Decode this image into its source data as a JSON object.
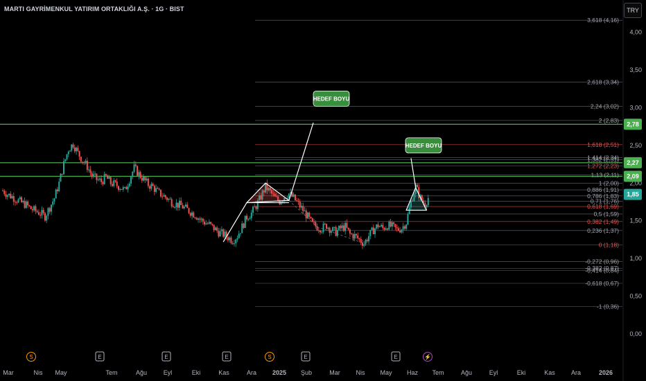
{
  "header": {
    "title": "MARTI GAYRİMENKUL YATIRIM ORTAKLIĞI A.Ş. · 1G · BIST",
    "currency_button": "TRY"
  },
  "colors": {
    "background": "#000000",
    "candle_up": "#26a69a",
    "candle_down": "#ef5350",
    "fib_green": "#4caf50",
    "fib_red": "#c62828",
    "fib_gray": "#787b86",
    "annotation_line": "#ffffff",
    "callout_bg": "#388e3c"
  },
  "chart_data": {
    "type": "candlestick",
    "title": "MARTI GAYRİMENKUL YATIRIM ORTAKLIĞI A.Ş. · 1G · BIST",
    "y_ticks": [
      "0,00",
      "0,50",
      "1,00",
      "1,50",
      "2,00",
      "2,50",
      "3,00",
      "3,50",
      "4,00"
    ],
    "ylim": [
      -0.35,
      4.3
    ],
    "x_ticks": [
      "Mar",
      "Nis",
      "May",
      "Tem",
      "Ağu",
      "Eyl",
      "Eki",
      "Kas",
      "Ara",
      "2025",
      "Şub",
      "Mar",
      "Nis",
      "May",
      "Haz",
      "Tem",
      "Ağu",
      "Eyl",
      "Eki",
      "Kas",
      "Ara",
      "2026"
    ],
    "price_labels": [
      {
        "value": 2.78,
        "text": "2,78",
        "color": "#4caf50"
      },
      {
        "value": 2.27,
        "text": "2,27",
        "color": "#4caf50"
      },
      {
        "value": 2.09,
        "text": "2,09",
        "color": "#4caf50"
      },
      {
        "value": 1.85,
        "text": "1,85",
        "color": "#26a69a"
      }
    ],
    "horizontal_lines": [
      2.78,
      2.27,
      2.09
    ],
    "fib_levels": [
      {
        "label": "3,618 (4,16)",
        "value": 4.16,
        "color": "#787b86"
      },
      {
        "label": "2,618 (3,34)",
        "value": 3.34,
        "color": "#787b86"
      },
      {
        "label": "2,24 (3,02)",
        "value": 3.02,
        "color": "#787b86"
      },
      {
        "label": "2 (2,83)",
        "value": 2.83,
        "color": "#787b86"
      },
      {
        "label": "1,618 (2,51)",
        "value": 2.51,
        "color": "#ef5350"
      },
      {
        "label": "1,414 (2,34)",
        "value": 2.34,
        "color": "#787b86"
      },
      {
        "label": "1,382 (2,31)",
        "value": 2.31,
        "color": "#787b86"
      },
      {
        "label": "1,272 (2,23)",
        "value": 2.23,
        "color": "#ef5350"
      },
      {
        "label": "1,13 (2,11)",
        "value": 2.11,
        "color": "#787b86"
      },
      {
        "label": "1 (2,00)",
        "value": 2.0,
        "color": "#787b86"
      },
      {
        "label": "0,886 (1,91)",
        "value": 1.91,
        "color": "#787b86"
      },
      {
        "label": "0,786 (1,83)",
        "value": 1.83,
        "color": "#787b86"
      },
      {
        "label": "0,71 (1,76)",
        "value": 1.76,
        "color": "#787b86"
      },
      {
        "label": "0,618 (1,69)",
        "value": 1.69,
        "color": "#ef5350"
      },
      {
        "label": "0,5 (1,59)",
        "value": 1.59,
        "color": "#787b86"
      },
      {
        "label": "0,382 (1,49)",
        "value": 1.49,
        "color": "#ef5350"
      },
      {
        "label": "0,236 (1,37)",
        "value": 1.37,
        "color": "#787b86"
      },
      {
        "label": "0 (1,18)",
        "value": 1.18,
        "color": "#ef5350"
      },
      {
        "label": "-0,272 (0,96)",
        "value": 0.96,
        "color": "#787b86"
      },
      {
        "label": "-0,382 (0,87)",
        "value": 0.87,
        "color": "#787b86"
      },
      {
        "label": "-0,414 (0,84)",
        "value": 0.84,
        "color": "#787b86"
      },
      {
        "label": "-0,618 (0,67)",
        "value": 0.67,
        "color": "#787b86"
      },
      {
        "label": "-1 (0,36)",
        "value": 0.36,
        "color": "#787b86"
      }
    ],
    "callouts": [
      {
        "text": "HEDEF BOYU",
        "value": 3.12
      },
      {
        "text": "HEDEF BOYU",
        "value": 2.5
      }
    ],
    "event_markers": [
      {
        "glyph": "S",
        "kind": "dividend",
        "color": "#ff9800"
      },
      {
        "glyph": "E",
        "kind": "earnings",
        "color": "#b2b5be"
      },
      {
        "glyph": "E",
        "kind": "earnings",
        "color": "#b2b5be"
      },
      {
        "glyph": "E",
        "kind": "earnings",
        "color": "#b2b5be"
      },
      {
        "glyph": "S",
        "kind": "dividend",
        "color": "#ff9800"
      },
      {
        "glyph": "E",
        "kind": "earnings",
        "color": "#b2b5be"
      },
      {
        "glyph": "E",
        "kind": "earnings",
        "color": "#b2b5be"
      },
      {
        "glyph": "⚡",
        "kind": "split",
        "color": "#ab47bc"
      }
    ],
    "series_close": [
      1.9,
      1.85,
      1.82,
      1.78,
      1.74,
      1.71,
      1.66,
      1.63,
      1.6,
      1.56,
      1.68,
      1.8,
      2.0,
      2.25,
      2.45,
      2.52,
      2.4,
      2.3,
      2.22,
      2.1,
      2.05,
      2.02,
      2.08,
      2.0,
      1.98,
      1.95,
      1.9,
      2.05,
      2.2,
      2.12,
      2.05,
      1.98,
      1.95,
      1.88,
      1.84,
      1.8,
      1.75,
      1.72,
      1.7,
      1.66,
      1.62,
      1.58,
      1.52,
      1.48,
      1.45,
      1.4,
      1.35,
      1.32,
      1.28,
      1.24,
      1.3,
      1.42,
      1.55,
      1.6,
      1.7,
      1.82,
      1.95,
      1.88,
      1.8,
      1.76,
      1.82,
      1.86,
      1.8,
      1.72,
      1.64,
      1.55,
      1.45,
      1.42,
      1.4,
      1.44,
      1.38,
      1.35,
      1.4,
      1.42,
      1.32,
      1.3,
      1.25,
      1.2,
      1.3,
      1.38,
      1.44,
      1.4,
      1.44,
      1.42,
      1.38,
      1.4,
      1.48,
      1.75,
      1.95,
      1.8,
      1.72,
      1.85
    ]
  }
}
